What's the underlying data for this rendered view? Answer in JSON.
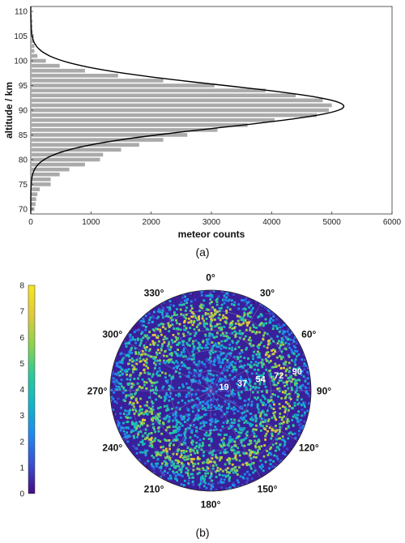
{
  "chart_data": [
    {
      "type": "bar",
      "panel_label": "(a)",
      "xlabel": "meteor counts",
      "ylabel": "altitude / km",
      "xlim": [
        0,
        6000
      ],
      "ylim": [
        69,
        111
      ],
      "xticks": [
        "0",
        "1000",
        "2000",
        "3000",
        "4000",
        "5000",
        "6000"
      ],
      "yticks": [
        "70",
        "75",
        "80",
        "85",
        "90",
        "95",
        "100",
        "105",
        "110"
      ],
      "bar_color": "#aaaaaa",
      "fit_color": "#000000",
      "grid": false,
      "altitudes": [
        70,
        71,
        72,
        73,
        74,
        75,
        76,
        77,
        78,
        79,
        80,
        81,
        82,
        83,
        84,
        85,
        86,
        87,
        88,
        89,
        90,
        91,
        92,
        93,
        94,
        95,
        96,
        97,
        98,
        99,
        100,
        101,
        102,
        103,
        104,
        105,
        106,
        107,
        108,
        109
      ],
      "counts": [
        60,
        80,
        90,
        110,
        150,
        330,
        330,
        480,
        640,
        900,
        1150,
        1200,
        1500,
        1800,
        2200,
        2600,
        3100,
        3600,
        4050,
        4750,
        4950,
        5000,
        4850,
        4400,
        3900,
        3050,
        2200,
        1450,
        900,
        480,
        250,
        110,
        60,
        60,
        50,
        50,
        30,
        30,
        30,
        20
      ],
      "fit": {
        "peak_altitude": 90.8,
        "peak_count": 5200,
        "sigma_km": 4.3
      }
    },
    {
      "type": "heatmap",
      "subtype": "polar",
      "panel_label": "(b)",
      "angle_labels": [
        "0°",
        "30°",
        "60°",
        "90°",
        "120°",
        "150°",
        "180°",
        "210°",
        "240°",
        "270°",
        "300°",
        "330°"
      ],
      "radial_labels": [
        "19",
        "37",
        "54",
        "72",
        "90"
      ],
      "colorbar": {
        "min": 0,
        "max": 8,
        "ticks": [
          "0",
          "1",
          "2",
          "3",
          "4",
          "5",
          "6",
          "7",
          "8"
        ],
        "colormap": [
          "#440d82",
          "#3b4fd2",
          "#1f8af0",
          "#14b5c8",
          "#2dc99a",
          "#8cd250",
          "#e0c93a",
          "#f7e81a"
        ]
      },
      "density_profile": {
        "ring_peak_zenith_deg": 66,
        "outer_zenith_deg": 90,
        "center_level": 2.0,
        "peak_level": 6.0,
        "edge_level": 1.0
      }
    }
  ]
}
